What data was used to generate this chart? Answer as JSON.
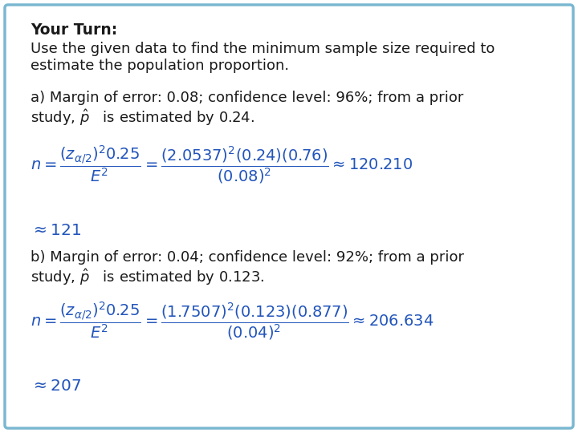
{
  "title_bold": "Your Turn:",
  "title_normal": "Use the given data to find the minimum sample size required to\nestimate the population proportion.",
  "part_a_text_1": "a) Margin of error: 0.08; confidence level: 96%; from a prior",
  "part_a_text_2": "study, $\\hat{p}$   is estimated by 0.24.",
  "part_a_formula": "$n = \\dfrac{(z_{\\alpha/2})^2 0.25}{E^2} = \\dfrac{(2.0537)^2(0.24)(0.76)}{(0.08)^2} \\approx 120.210$",
  "part_a_answer": "$\\approx 121$",
  "part_b_text_1": "b) Margin of error: 0.04; confidence level: 92%; from a prior",
  "part_b_text_2": "study, $\\hat{p}$   is estimated by 0.123.",
  "part_b_formula": "$n = \\dfrac{(z_{\\alpha/2})^2 0.25}{E^2} = \\dfrac{(1.7507)^2(0.123)(0.877)}{(0.04)^2} {\\approx}206.634$",
  "part_b_answer": "$\\approx 207$",
  "text_color": "#1a1a1a",
  "border_color": "#7ab8d0",
  "bg_color": "#ffffff",
  "formula_color": "#2255bb",
  "title_fontsize": 13.5,
  "body_fontsize": 13.0,
  "formula_fontsize": 14.0,
  "answer_fontsize": 14.5
}
